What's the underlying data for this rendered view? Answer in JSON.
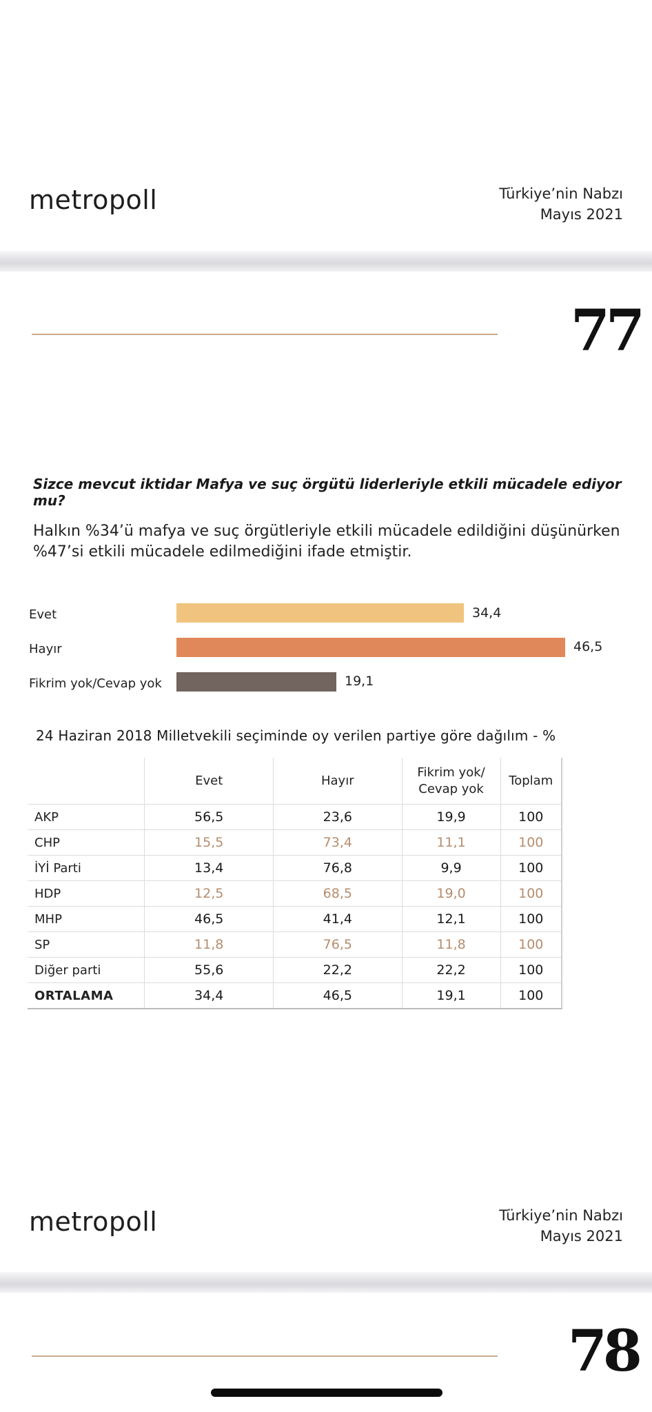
{
  "page1_header": {
    "logo": "metropoll",
    "report_title": "Türkiye’nin Nabzı",
    "report_date": "Mayıs 2021"
  },
  "page1": {
    "page_number": "77",
    "question": "Sizce mevcut iktidar Mafya ve suç örgütü liderleriyle etkili mücadele ediyor mu?",
    "summary_line1": "Halkın %34’ü mafya ve suç örgütleriyle etkili mücadele edildiğini düşünürken",
    "summary_line2": "%47’si  etkili mücadele edilmediğini ifade etmiştir.",
    "table_title": "24 Haziran 2018 Milletvekili seçiminde oy verilen partiye göre dağılım - %",
    "table": {
      "headers": [
        "",
        "Evet",
        "Hayır",
        "Fikrim yok/ Cevap yok",
        "Toplam"
      ],
      "rows": [
        {
          "party": "AKP",
          "evet": "56,5",
          "hayir": "23,6",
          "fikrim": "19,9",
          "toplam": "100"
        },
        {
          "party": "CHP",
          "evet": "15,5",
          "hayir": "73,4",
          "fikrim": "11,1",
          "toplam": "100"
        },
        {
          "party": "İYİ Parti",
          "evet": "13,4",
          "hayir": "76,8",
          "fikrim": "9,9",
          "toplam": "100"
        },
        {
          "party": "HDP",
          "evet": "12,5",
          "hayir": "68,5",
          "fikrim": "19,0",
          "toplam": "100"
        },
        {
          "party": "MHP",
          "evet": "46,5",
          "hayir": "41,4",
          "fikrim": "12,1",
          "toplam": "100"
        },
        {
          "party": "SP",
          "evet": "11,8",
          "hayir": "76,5",
          "fikrim": "11,8",
          "toplam": "100"
        },
        {
          "party": "Diğer parti",
          "evet": "55,6",
          "hayir": "22,2",
          "fikrim": "22,2",
          "toplam": "100"
        },
        {
          "party": "ORTALAMA",
          "evet": "34,4",
          "hayir": "46,5",
          "fikrim": "19,1",
          "toplam": "100"
        }
      ]
    }
  },
  "chart_data": {
    "type": "bar",
    "orientation": "horizontal",
    "categories": [
      "Evet",
      "Hayır",
      "Fikrim yok/Cevap yok"
    ],
    "values": [
      34.4,
      46.5,
      19.1
    ],
    "value_labels": [
      "34,4",
      "46,5",
      "19,1"
    ],
    "colors": [
      "#f0c47f",
      "#e0885a",
      "#72645f"
    ]
  },
  "page2_header": {
    "logo": "metropoll",
    "report_title": "Türkiye’nin Nabzı",
    "report_date": "Mayıs 2021"
  },
  "page2": {
    "page_number": "78"
  },
  "colors": {
    "accent_rule": "#c9a98c",
    "accent_text": "#b58d6e"
  }
}
